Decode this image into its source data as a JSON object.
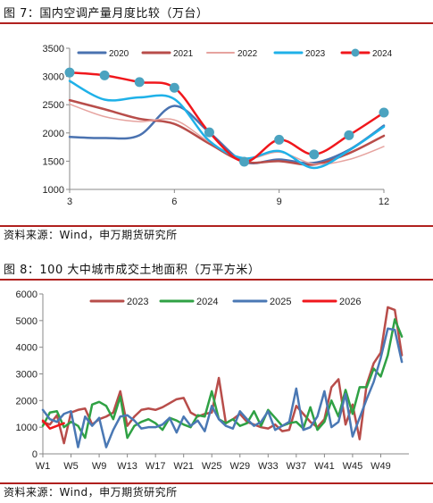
{
  "figure1": {
    "title": "图 7：国内空调产量月度比较（万台）",
    "source": "资料来源：Wind，申万期货研究所"
  },
  "figure2": {
    "title": "图 8：100 大中城市成交土地面积（万平方米）",
    "source": "资料来源：Wind，申万期货研究所"
  },
  "chart_data": [
    {
      "type": "line",
      "title": "",
      "xlabel": "",
      "ylabel": "",
      "x_ticks": [
        "3",
        "6",
        "9",
        "12"
      ],
      "xlim": [
        3,
        12
      ],
      "ylim": [
        1000,
        3500
      ],
      "y_ticks": [
        1000,
        1500,
        2000,
        2500,
        3000,
        3500
      ],
      "grid": false,
      "legend": "top",
      "x": [
        3,
        4,
        5,
        6,
        7,
        8,
        9,
        10,
        11,
        12
      ],
      "series": [
        {
          "name": "2020",
          "color": "#4a72b0",
          "width": 2.5,
          "values": [
            1930,
            1910,
            1960,
            2480,
            2010,
            1490,
            1530,
            1470,
            1700,
            2130
          ]
        },
        {
          "name": "2021",
          "color": "#b84d4a",
          "width": 2.5,
          "values": [
            2580,
            2420,
            2250,
            2160,
            1810,
            1490,
            1500,
            1440,
            1640,
            1950
          ]
        },
        {
          "name": "2022",
          "color": "#e6a39f",
          "width": 1.5,
          "values": [
            2510,
            2290,
            2200,
            2230,
            1840,
            1540,
            1660,
            1450,
            1530,
            1760
          ]
        },
        {
          "name": "2023",
          "color": "#1fb1e8",
          "width": 2.5,
          "values": [
            2920,
            2590,
            2630,
            2600,
            1860,
            1550,
            1680,
            1380,
            1690,
            2110
          ]
        },
        {
          "name": "2024",
          "color": "#f0171c",
          "width": 2.5,
          "marker": true,
          "marker_color": "#4ba3c0",
          "values": [
            3070,
            3020,
            2900,
            2800,
            2010,
            1490,
            1880,
            1620,
            1960,
            2360
          ]
        }
      ]
    },
    {
      "type": "line",
      "title": "",
      "xlabel": "",
      "ylabel": "",
      "x_ticks": [
        "W1",
        "W5",
        "W9",
        "W13",
        "W17",
        "W21",
        "W25",
        "W29",
        "W33",
        "W37",
        "W41",
        "W45",
        "W49"
      ],
      "xlim": [
        1,
        53
      ],
      "ylim": [
        0,
        6000
      ],
      "y_ticks": [
        0,
        1000,
        2000,
        3000,
        4000,
        5000,
        6000
      ],
      "grid": false,
      "legend": "top",
      "series": [
        {
          "name": "2023",
          "color": "#b84d4a",
          "width": 2.5,
          "x": [
            1,
            2,
            3,
            4,
            5,
            6,
            7,
            8,
            9,
            10,
            11,
            12,
            13,
            14,
            15,
            16,
            17,
            18,
            19,
            20,
            21,
            22,
            23,
            24,
            25,
            26,
            27,
            28,
            29,
            30,
            31,
            32,
            33,
            34,
            35,
            36,
            37,
            38,
            39,
            40,
            41,
            42,
            43,
            44,
            45,
            46,
            47,
            48,
            49,
            50,
            51,
            52
          ],
          "values": [
            1200,
            1100,
            1450,
            400,
            1550,
            1650,
            1700,
            1100,
            1300,
            1400,
            1550,
            2350,
            1050,
            1400,
            1650,
            1700,
            1650,
            1750,
            1900,
            2050,
            2100,
            1550,
            1400,
            1500,
            1550,
            2850,
            1150,
            1300,
            1500,
            1200,
            1100,
            1000,
            950,
            1100,
            850,
            900,
            1800,
            1500,
            1200,
            1000,
            1300,
            2500,
            2800,
            1100,
            1850,
            550,
            2600,
            3400,
            3800,
            5500,
            5400,
            3700
          ]
        },
        {
          "name": "2024",
          "color": "#2fa144",
          "width": 2.5,
          "x": [
            1,
            2,
            3,
            4,
            5,
            6,
            7,
            8,
            9,
            10,
            11,
            12,
            13,
            14,
            15,
            16,
            17,
            18,
            19,
            20,
            21,
            22,
            23,
            24,
            25,
            26,
            27,
            28,
            29,
            30,
            31,
            32,
            33,
            34,
            35,
            36,
            37,
            38,
            39,
            40,
            41,
            42,
            43,
            44,
            45,
            46,
            47,
            48,
            49,
            50,
            51,
            52
          ],
          "values": [
            1050,
            1550,
            1600,
            1000,
            1200,
            1050,
            600,
            1850,
            1950,
            1800,
            1300,
            2150,
            600,
            1050,
            1200,
            1300,
            1150,
            900,
            1350,
            1250,
            1100,
            1000,
            1450,
            1400,
            2350,
            1300,
            1150,
            1300,
            1050,
            1150,
            1600,
            1050,
            1650,
            1350,
            1050,
            1150,
            1200,
            950,
            1750,
            900,
            1200,
            2000,
            1400,
            2400,
            1500,
            2500,
            2500,
            3200,
            2900,
            3700,
            5050,
            4400
          ]
        },
        {
          "name": "2025",
          "color": "#4a78b4",
          "width": 2.5,
          "x": [
            1,
            2,
            3,
            4,
            5,
            6,
            7,
            8,
            9,
            10,
            11,
            12,
            13,
            14,
            15,
            16,
            17,
            18,
            19,
            20,
            21,
            22,
            23,
            24,
            25,
            26,
            27,
            28,
            29,
            30,
            31,
            32,
            33,
            34,
            35,
            36,
            37,
            38,
            39,
            40,
            41,
            42,
            43,
            44,
            45,
            46,
            47,
            48,
            49,
            50,
            51,
            52
          ],
          "values": [
            1650,
            1300,
            1200,
            1500,
            1600,
            250,
            1400,
            1050,
            1350,
            250,
            900,
            1400,
            1450,
            1250,
            950,
            1000,
            1000,
            1100,
            1350,
            800,
            1400,
            1050,
            1250,
            850,
            1800,
            1300,
            1050,
            950,
            1600,
            1300,
            1050,
            1200,
            1600,
            900,
            1050,
            1200,
            2450,
            900,
            1000,
            1400,
            2350,
            1000,
            1200,
            2250,
            650,
            1350,
            2050,
            2700,
            3600,
            4700,
            4650,
            3450
          ]
        },
        {
          "name": "2026",
          "color": "#f0171c",
          "width": 2.5,
          "x": [
            1,
            2,
            3,
            4
          ],
          "values": [
            1250,
            950,
            1050,
            1150
          ]
        }
      ]
    }
  ]
}
